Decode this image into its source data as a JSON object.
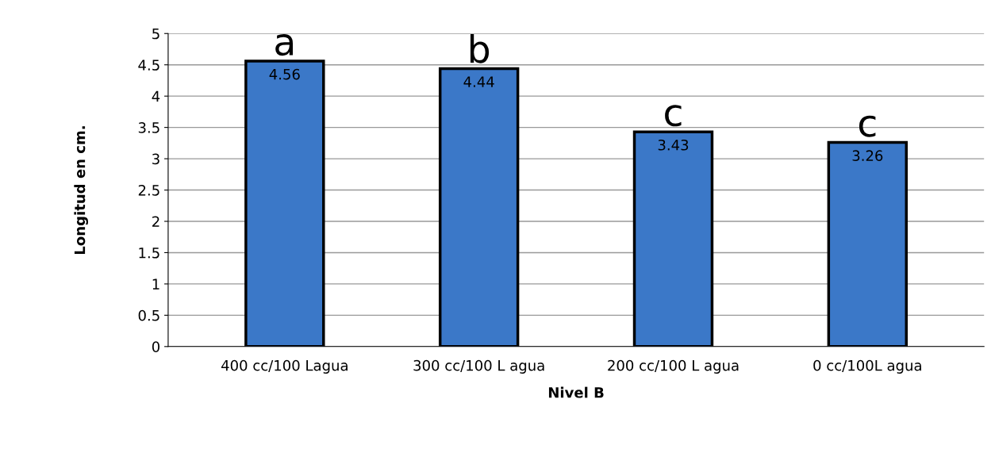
{
  "chart_data": {
    "type": "bar",
    "xlabel": "Nivel B",
    "ylabel": "Longitud en cm.",
    "categories": [
      "400 cc/100 Lagua",
      "300 cc/100 L agua",
      "200 cc/100 L agua",
      "0 cc/100L agua"
    ],
    "values": [
      4.56,
      4.44,
      3.43,
      3.26
    ],
    "color": "#3b78c8",
    "ylim": [
      0,
      5
    ],
    "yticks": [
      0,
      0.5,
      1,
      1.5,
      2,
      2.5,
      3,
      3.5,
      4,
      4.5,
      5
    ],
    "grid": "y",
    "data_labels": true,
    "annotations": [
      {
        "text": "a",
        "x": "400 cc/100 Lagua",
        "y": 4.56
      },
      {
        "text": "b",
        "x": "300 cc/100 L agua",
        "y": 4.44
      },
      {
        "text": "c",
        "x": "200 cc/100 L agua",
        "y": 3.43
      },
      {
        "text": "c",
        "x": "0 cc/100L agua",
        "y": 3.26
      }
    ]
  }
}
